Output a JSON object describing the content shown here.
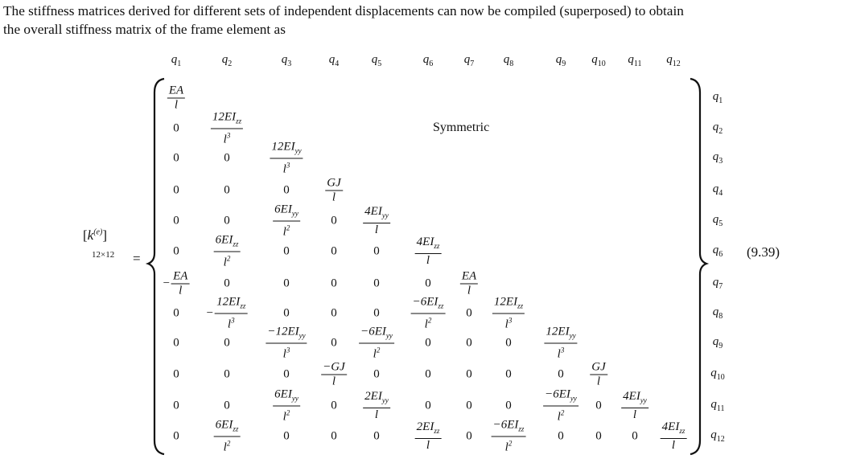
{
  "paragraph": {
    "lines": [
      "The stiffness matrices derived for different sets of independent displacements can now be compiled (superposed) to obtain",
      "the overall stiffness matrix of the frame element as"
    ]
  },
  "equation": {
    "lhs": {
      "symbol": "k",
      "superscript": "(e)",
      "dimension": "12×12"
    },
    "equals": "=",
    "number": "(9.39)",
    "symmetric_label": "Symmetric",
    "dof_var": "q",
    "column_labels": [
      "1",
      "2",
      "3",
      "4",
      "5",
      "6",
      "7",
      "8",
      "9",
      "10",
      "11",
      "12"
    ],
    "row_labels": [
      "1",
      "2",
      "3",
      "4",
      "5",
      "6",
      "7",
      "8",
      "9",
      "10",
      "11",
      "12"
    ],
    "rows": [
      [
        {
          "num": "EA",
          "den": "l"
        }
      ],
      [
        "0",
        {
          "num": "12EI",
          "sub": "zz",
          "den": "l",
          "sup": "3"
        }
      ],
      [
        "0",
        "0",
        {
          "num": "12EI",
          "sub": "yy",
          "den": "l",
          "sup": "3"
        }
      ],
      [
        "0",
        "0",
        "0",
        {
          "num": "GJ",
          "den": "l"
        }
      ],
      [
        "0",
        "0",
        {
          "num": "6EI",
          "sub": "yy",
          "den": "l",
          "sup": "2"
        },
        "0",
        {
          "num": "4EI",
          "sub": "yy",
          "den": "l"
        }
      ],
      [
        "0",
        {
          "num": "6EI",
          "sub": "zz",
          "den": "l",
          "sup": "2"
        },
        "0",
        "0",
        "0",
        {
          "num": "4EI",
          "sub": "zz",
          "den": "l"
        }
      ],
      [
        {
          "pre": "−",
          "num": "EA",
          "den": "l"
        },
        "0",
        "0",
        "0",
        "0",
        "0",
        {
          "num": "EA",
          "den": "l"
        }
      ],
      [
        "0",
        {
          "pre": "−",
          "num": "12EI",
          "sub": "zz",
          "den": "l",
          "sup": "3"
        },
        "0",
        "0",
        "0",
        {
          "num": "−6EI",
          "sub": "zz",
          "den": "l",
          "sup": "2"
        },
        "0",
        {
          "num": "12EI",
          "sub": "zz",
          "den": "l",
          "sup": "3"
        }
      ],
      [
        "0",
        "0",
        {
          "num": "−12EI",
          "sub": "yy",
          "den": "l",
          "sup": "3"
        },
        "0",
        {
          "num": "−6EI",
          "sub": "yy",
          "den": "l",
          "sup": "2"
        },
        "0",
        "0",
        "0",
        {
          "num": "12EI",
          "sub": "yy",
          "den": "l",
          "sup": "3"
        }
      ],
      [
        "0",
        "0",
        "0",
        {
          "num": "−GJ",
          "den": "l"
        },
        "0",
        "0",
        "0",
        "0",
        "0",
        {
          "num": "GJ",
          "den": "l"
        }
      ],
      [
        "0",
        "0",
        {
          "num": "6EI",
          "sub": "yy",
          "den": "l",
          "sup": "2"
        },
        "0",
        {
          "num": "2EI",
          "sub": "yy",
          "den": "l"
        },
        "0",
        "0",
        "0",
        {
          "num": "−6EI",
          "sub": "yy",
          "den": "l",
          "sup": "2"
        },
        "0",
        {
          "num": "4EI",
          "sub": "yy",
          "den": "l"
        }
      ],
      [
        "0",
        {
          "num": "6EI",
          "sub": "zz",
          "den": "l",
          "sup": "2"
        },
        "0",
        "0",
        "0",
        {
          "num": "2EI",
          "sub": "zz",
          "den": "l"
        },
        "0",
        {
          "num": "−6EI",
          "sub": "zz",
          "den": "l",
          "sup": "2"
        },
        "0",
        "0",
        "0",
        {
          "num": "4EI",
          "sub": "zz",
          "den": "l"
        }
      ]
    ]
  }
}
